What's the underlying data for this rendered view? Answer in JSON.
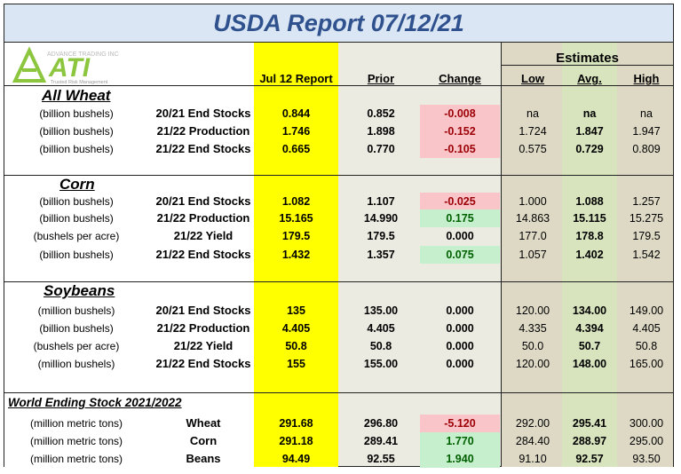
{
  "title": "USDA Report 07/12/21",
  "logo": {
    "brand": "ATI",
    "tag_top": "ADVANCE TRADING INC",
    "tag_bottom": "Trusted Risk Management"
  },
  "headers": {
    "report": "Jul 12 Report",
    "prior": "Prior",
    "change": "Change",
    "estimates": "Estimates",
    "low": "Low",
    "avg": "Avg.",
    "high": "High"
  },
  "colors": {
    "title_bg": "#dbe6f4",
    "title_text": "#2f528f",
    "report_col": "#ffff00",
    "estimates_bg": "#ded9c5",
    "avg_bg": "#d8e4bd",
    "negative_bg": "#f9c5c9",
    "negative_text": "#9c0006",
    "positive_bg": "#c6efce",
    "positive_text": "#006100"
  },
  "sections": [
    {
      "name": "All Wheat",
      "rows": [
        {
          "unit": "(billion bushels)",
          "label": "20/21 End Stocks",
          "report": "0.844",
          "prior": "0.852",
          "change": "-0.008",
          "change_color": "neg",
          "low": "na",
          "avg": "na",
          "high": "na"
        },
        {
          "unit": "(billion bushels)",
          "label": "21/22 Production",
          "report": "1.746",
          "prior": "1.898",
          "change": "-0.152",
          "change_color": "neg",
          "low": "1.724",
          "avg": "1.847",
          "high": "1.947"
        },
        {
          "unit": "(billion bushels)",
          "label": "21/22 End Stocks",
          "report": "0.665",
          "prior": "0.770",
          "change": "-0.105",
          "change_color": "neg",
          "low": "0.575",
          "avg": "0.729",
          "high": "0.809"
        }
      ]
    },
    {
      "name": "Corn",
      "rows": [
        {
          "unit": "(billion bushels)",
          "label": "20/21 End Stocks",
          "report": "1.082",
          "prior": "1.107",
          "change": "-0.025",
          "change_color": "neg",
          "low": "1.000",
          "avg": "1.088",
          "high": "1.257"
        },
        {
          "unit": "(billion bushels)",
          "label": "21/22 Production",
          "report": "15.165",
          "prior": "14.990",
          "change": "0.175",
          "change_color": "pos",
          "low": "14.863",
          "avg": "15.115",
          "high": "15.275"
        },
        {
          "unit": "(bushels per  acre)",
          "label": "21/22 Yield",
          "report": "179.5",
          "prior": "179.5",
          "change": "0.000",
          "change_color": "",
          "low": "177.0",
          "avg": "178.8",
          "high": "179.5"
        },
        {
          "unit": "(billion bushels)",
          "label": "21/22 End Stocks",
          "report": "1.432",
          "prior": "1.357",
          "change": "0.075",
          "change_color": "pos",
          "low": "1.057",
          "avg": "1.402",
          "high": "1.542"
        }
      ]
    },
    {
      "name": "Soybeans",
      "rows": [
        {
          "unit": "(million bushels)",
          "label": "20/21 End Stocks",
          "report": "135",
          "prior": "135.00",
          "change": "0.000",
          "change_color": "",
          "low": "120.00",
          "avg": "134.00",
          "high": "149.00"
        },
        {
          "unit": "(billion bushels)",
          "label": "21/22 Production",
          "report": "4.405",
          "prior": "4.405",
          "change": "0.000",
          "change_color": "",
          "low": "4.335",
          "avg": "4.394",
          "high": "4.405"
        },
        {
          "unit": "(bushels per  acre)",
          "label": "21/22 Yield",
          "report": "50.8",
          "prior": "50.8",
          "change": "0.000",
          "change_color": "",
          "low": "50.0",
          "avg": "50.7",
          "high": "50.8"
        },
        {
          "unit": "(million bushels)",
          "label": "21/22 End Stocks",
          "report": "155",
          "prior": "155.00",
          "change": "0.000",
          "change_color": "",
          "low": "120.00",
          "avg": "148.00",
          "high": "165.00"
        }
      ]
    },
    {
      "name": "World Ending Stock 2021/2022",
      "rows": [
        {
          "unit": "(million metric tons)",
          "label": "Wheat",
          "report": "291.68",
          "prior": "296.80",
          "change": "-5.120",
          "change_color": "neg",
          "low": "292.00",
          "avg": "295.41",
          "high": "300.00"
        },
        {
          "unit": "(million metric tons)",
          "label": "Corn",
          "report": "291.18",
          "prior": "289.41",
          "change": "1.770",
          "change_color": "pos",
          "low": "284.40",
          "avg": "288.97",
          "high": "295.00"
        },
        {
          "unit": "(million metric tons)",
          "label": "Beans",
          "report": "94.49",
          "prior": "92.55",
          "change": "1.940",
          "change_color": "pos",
          "low": "91.10",
          "avg": "92.57",
          "high": "93.50"
        }
      ]
    }
  ]
}
